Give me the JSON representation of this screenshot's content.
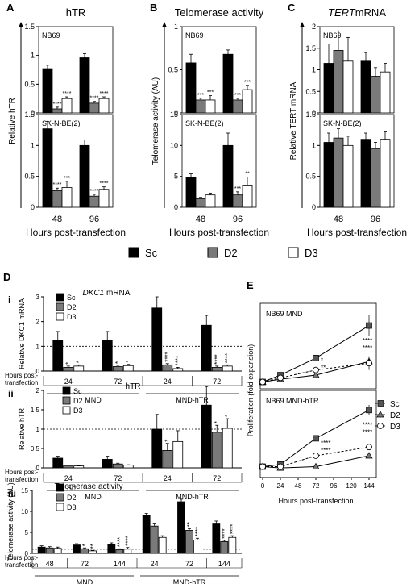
{
  "panels": {
    "A": {
      "letter": "A",
      "title": "hTR",
      "ylabel": "Relative hTR",
      "xlabel": "Hours post-transfection",
      "xticks": [
        "48",
        "96"
      ],
      "top": {
        "label": "NB69",
        "ylim": [
          0,
          1.5
        ],
        "yticks": [
          0.0,
          0.5,
          1.0,
          1.5
        ],
        "values": [
          [
            0.77,
            0.07,
            0.25
          ],
          [
            0.96,
            0.17,
            0.25
          ]
        ],
        "errors": [
          [
            0.06,
            0.03,
            0.03
          ],
          [
            0.07,
            0.03,
            0.03
          ]
        ],
        "stars": [
          [
            "",
            "****",
            "****"
          ],
          [
            "",
            "****",
            "****"
          ]
        ]
      },
      "bottom": {
        "label": "SK-N-BE(2)",
        "ylim": [
          0,
          1.5
        ],
        "yticks": [
          0.0,
          0.5,
          1.0,
          1.5
        ],
        "values": [
          [
            1.27,
            0.27,
            0.32
          ],
          [
            1.0,
            0.18,
            0.29
          ]
        ],
        "errors": [
          [
            0.12,
            0.04,
            0.1
          ],
          [
            0.09,
            0.03,
            0.04
          ]
        ],
        "stars": [
          [
            "",
            "****",
            "***"
          ],
          [
            "",
            "****",
            "****"
          ]
        ]
      }
    },
    "B": {
      "letter": "B",
      "title": "Telomerase activity",
      "ylabel": "Telomerase activity (AU)",
      "xlabel": "Hours post-transfection",
      "xticks": [
        "48",
        "96"
      ],
      "top": {
        "label": "NB69",
        "ylim": [
          0,
          1.0
        ],
        "yticks": [
          0.0,
          0.5,
          1.0
        ],
        "values": [
          [
            0.58,
            0.15,
            0.15
          ],
          [
            0.68,
            0.15,
            0.27
          ]
        ],
        "errors": [
          [
            0.1,
            0.02,
            0.05
          ],
          [
            0.05,
            0.02,
            0.05
          ]
        ],
        "stars": [
          [
            "",
            "***",
            "***"
          ],
          [
            "",
            "***",
            "***"
          ]
        ]
      },
      "bottom": {
        "label": "SK-N-BE(2)",
        "ylim": [
          0,
          15
        ],
        "yticks": [
          0,
          5,
          10,
          15
        ],
        "values": [
          [
            4.8,
            1.4,
            2.0
          ],
          [
            10.0,
            2.0,
            3.6
          ]
        ],
        "errors": [
          [
            0.6,
            0.2,
            0.3
          ],
          [
            2.0,
            0.5,
            1.3
          ]
        ],
        "stars": [
          [
            "",
            "",
            ""
          ],
          [
            "",
            "***",
            "**"
          ]
        ]
      }
    },
    "C": {
      "letter": "C",
      "title_italic": "TERT",
      "title_rest": "mRNA",
      "ylabel": "Relative TERT mRNA",
      "xlabel": "Hours post-transfection",
      "xticks": [
        "48",
        "96"
      ],
      "top": {
        "label": "NB69",
        "ylim": [
          0,
          2.0
        ],
        "yticks": [
          0.0,
          0.5,
          1.0,
          1.5,
          2.0
        ],
        "values": [
          [
            1.15,
            1.45,
            1.2
          ],
          [
            1.2,
            0.85,
            0.95
          ]
        ],
        "errors": [
          [
            0.45,
            0.45,
            0.55
          ],
          [
            0.2,
            0.2,
            0.2
          ]
        ],
        "stars": [
          [
            "",
            "",
            ""
          ],
          [
            "",
            "",
            ""
          ]
        ]
      },
      "bottom": {
        "label": "SK-N-BE(2)",
        "ylim": [
          0,
          1.5
        ],
        "yticks": [
          0.0,
          0.5,
          1.0,
          1.5
        ],
        "values": [
          [
            1.05,
            1.12,
            1.0
          ],
          [
            1.1,
            0.95,
            1.1
          ]
        ],
        "errors": [
          [
            0.15,
            0.15,
            0.15
          ],
          [
            0.1,
            0.1,
            0.12
          ]
        ],
        "stars": [
          [
            "",
            "",
            ""
          ],
          [
            "",
            "",
            ""
          ]
        ]
      }
    }
  },
  "legend_main": [
    {
      "name": "Sc",
      "color": "#000000"
    },
    {
      "name": "D2",
      "color": "#7a7a7a"
    },
    {
      "name": "D3",
      "color": "#ffffff"
    }
  ],
  "panel_D": {
    "letter": "D",
    "sub_i": {
      "roman": "i",
      "title_italic": "DKC1",
      "title_rest": " mRNA",
      "ylabel": "Relative DKC1 mRNA",
      "ylim": [
        0,
        3
      ],
      "yticks": [
        0,
        1,
        2,
        3
      ],
      "hours_label": "Hours post-\ntransfection",
      "xticks": [
        "24",
        "72",
        "24",
        "72"
      ],
      "groups": [
        "MND",
        "MND-hTR"
      ],
      "values": [
        [
          1.25,
          0.15,
          0.2
        ],
        [
          1.25,
          0.18,
          0.22
        ],
        [
          2.55,
          0.25,
          0.1
        ],
        [
          1.85,
          0.15,
          0.2
        ]
      ],
      "errors": [
        [
          0.35,
          0.05,
          0.05
        ],
        [
          0.35,
          0.05,
          0.05
        ],
        [
          0.45,
          0.05,
          0.05
        ],
        [
          0.4,
          0.05,
          0.05
        ]
      ],
      "stars": [
        [
          "",
          "*",
          "*"
        ],
        [
          "",
          "*",
          "*"
        ],
        [
          "",
          "****",
          "****"
        ],
        [
          "",
          "****",
          "****"
        ]
      ],
      "legend": [
        "Sc",
        "D2",
        "D3"
      ]
    },
    "sub_ii": {
      "roman": "ii",
      "title": "hTR",
      "ylabel": "Relative hTR",
      "ylim": [
        0,
        2.0
      ],
      "yticks": [
        0.0,
        0.5,
        1.0,
        1.5,
        2.0
      ],
      "hours_label": "Hours post-\ntransfection",
      "xticks": [
        "24",
        "72",
        "24",
        "72"
      ],
      "groups": [
        "MND",
        "MND-hTR"
      ],
      "values": [
        [
          0.25,
          0.06,
          0.05
        ],
        [
          0.22,
          0.1,
          0.07
        ],
        [
          1.0,
          0.45,
          0.68
        ],
        [
          1.62,
          0.92,
          1.02
        ]
      ],
      "errors": [
        [
          0.05,
          0.01,
          0.01
        ],
        [
          0.08,
          0.02,
          0.01
        ],
        [
          0.38,
          0.18,
          0.28
        ],
        [
          0.48,
          0.18,
          0.25
        ]
      ],
      "stars": [
        [
          "",
          "",
          ""
        ],
        [
          "",
          "",
          ""
        ],
        [
          "",
          "*",
          ""
        ],
        [
          "",
          "*",
          "*"
        ]
      ],
      "legend": [
        "Sc",
        "D2",
        "D3"
      ]
    },
    "sub_iii": {
      "roman": "iii",
      "title": "Telomerase activity",
      "ylabel": "Telomerase activity (AU)",
      "ylim": [
        0,
        15
      ],
      "yticks": [
        0,
        5,
        10,
        15
      ],
      "hours_label": "Hours post-\ntransfection",
      "xticks": [
        "48",
        "72",
        "144",
        "24",
        "72",
        "144"
      ],
      "groups": [
        "MND",
        "MND-hTR"
      ],
      "values": [
        [
          1.5,
          1.3,
          1.2
        ],
        [
          2.0,
          1.1,
          0.6
        ],
        [
          2.2,
          0.9,
          1.0
        ],
        [
          9.0,
          6.5,
          3.8
        ],
        [
          12.3,
          5.5,
          3.2
        ],
        [
          7.2,
          2.8,
          3.8
        ]
      ],
      "errors": [
        [
          0.3,
          0.3,
          0.3
        ],
        [
          0.3,
          0.2,
          0.1
        ],
        [
          0.3,
          0.2,
          0.4
        ],
        [
          0.5,
          0.7,
          0.4
        ],
        [
          0.6,
          0.4,
          0.4
        ],
        [
          0.5,
          0.3,
          0.4
        ]
      ],
      "stars": [
        [
          "",
          "",
          ""
        ],
        [
          "",
          "*",
          "**"
        ],
        [
          "",
          "****",
          "****"
        ],
        [
          "",
          "",
          ""
        ],
        [
          "",
          "**",
          "****"
        ],
        [
          "",
          "****",
          "****"
        ]
      ],
      "legend": [
        "Sc",
        "D2",
        "D3"
      ]
    }
  },
  "panel_E": {
    "letter": "E",
    "ylabel": "Proliferation (fold expansion)",
    "xlabel": "Hours post-transfection",
    "xticks": [
      0,
      24,
      48,
      72,
      96,
      120,
      144
    ],
    "legend": [
      {
        "name": "Sc",
        "marker": "square"
      },
      {
        "name": "D2",
        "marker": "triangle"
      },
      {
        "name": "D3",
        "marker": "circle"
      }
    ],
    "top": {
      "label": "NB69 MND",
      "ylim": [
        0,
        250
      ],
      "x": [
        0,
        24,
        72,
        144
      ],
      "series": [
        {
          "name": "Sc",
          "values": [
            20,
            40,
            90,
            185
          ]
        },
        {
          "name": "D2",
          "values": [
            20,
            28,
            40,
            80
          ]
        },
        {
          "name": "D3",
          "values": [
            20,
            32,
            55,
            75
          ]
        }
      ],
      "errors": [
        [
          5,
          6,
          8,
          30
        ],
        [
          4,
          5,
          6,
          8
        ],
        [
          4,
          5,
          6,
          20
        ]
      ],
      "stars": [
        {
          "x": 72,
          "text": "*"
        },
        {
          "x": 72,
          "text": "**"
        },
        {
          "x": 144,
          "text": "****"
        },
        {
          "x": 144,
          "text": "****"
        }
      ]
    },
    "bottom": {
      "label": "NB69 MND-hTR",
      "ylim": [
        0,
        200
      ],
      "x": [
        0,
        24,
        72,
        144
      ],
      "series": [
        {
          "name": "Sc",
          "values": [
            25,
            30,
            90,
            155
          ]
        },
        {
          "name": "D2",
          "values": [
            25,
            22,
            25,
            50
          ]
        },
        {
          "name": "D3",
          "values": [
            25,
            25,
            50,
            70
          ]
        }
      ],
      "errors": [
        [
          3,
          4,
          6,
          12
        ],
        [
          3,
          3,
          4,
          5
        ],
        [
          3,
          3,
          4,
          5
        ]
      ],
      "stars": [
        {
          "x": 72,
          "text": "****"
        },
        {
          "x": 72,
          "text": "****"
        },
        {
          "x": 144,
          "text": "****"
        },
        {
          "x": 144,
          "text": "****"
        }
      ]
    }
  }
}
